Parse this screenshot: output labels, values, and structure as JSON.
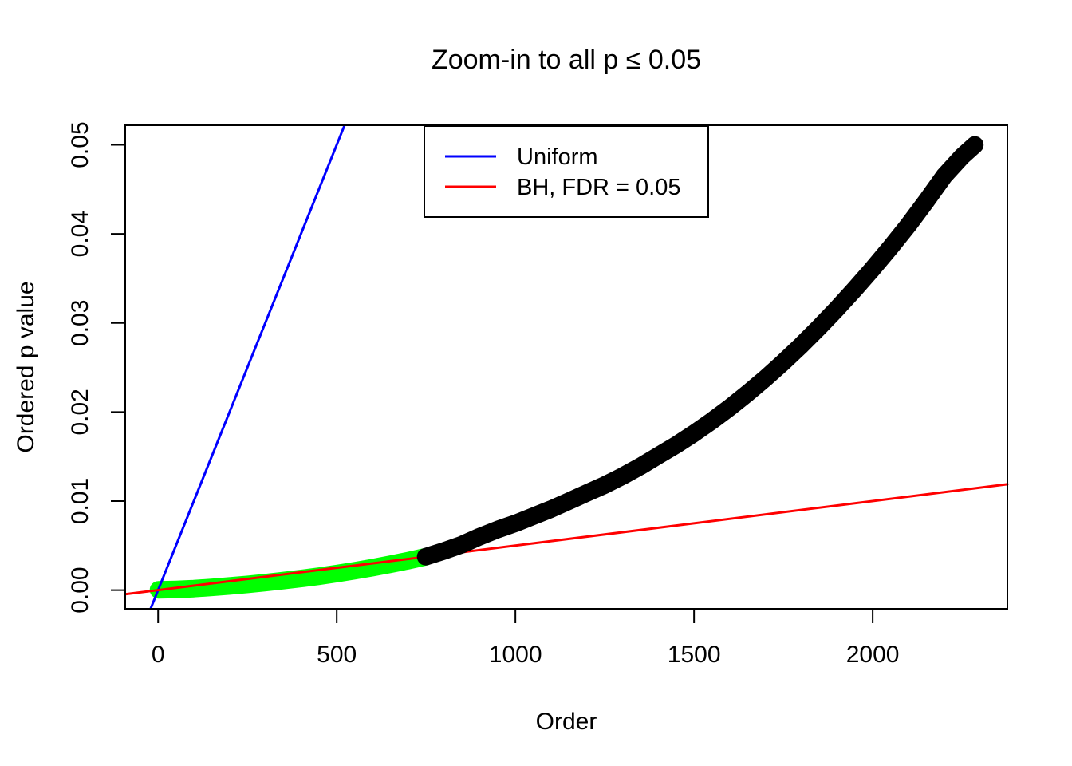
{
  "figure": {
    "background_color": "#ffffff",
    "foreground_color": "#000000"
  },
  "chart_data": {
    "type": "scatter",
    "title": "Zoom-in to all p ≤ 0.05",
    "xlabel": "Order",
    "ylabel": "Ordered p value",
    "xlim": [
      -92,
      2377
    ],
    "ylim": [
      -0.0021,
      0.0522
    ],
    "grid": "off",
    "x_ticks": [
      0,
      500,
      1000,
      1500,
      2000
    ],
    "x_tick_labels": [
      "0",
      "500",
      "1000",
      "1500",
      "2000"
    ],
    "y_ticks": [
      0.0,
      0.01,
      0.02,
      0.03,
      0.04,
      0.05
    ],
    "y_tick_labels": [
      "0.00",
      "0.01",
      "0.02",
      "0.03",
      "0.04",
      "0.05"
    ],
    "legend": {
      "position": "top-center",
      "entries": [
        {
          "label": "Uniform",
          "color": "#0000ff",
          "style": "line"
        },
        {
          "label": "BH, FDR = 0.05",
          "color": "#ff0000",
          "style": "line"
        }
      ]
    },
    "series": [
      {
        "name": "significant-ordered-p-values",
        "role": "points-band",
        "color": "#00ff00",
        "points": [
          [
            1,
            3e-05
          ],
          [
            50,
            8e-05
          ],
          [
            100,
            0.00017
          ],
          [
            150,
            0.0003
          ],
          [
            200,
            0.00046
          ],
          [
            250,
            0.00064
          ],
          [
            300,
            0.00084
          ],
          [
            350,
            0.00106
          ],
          [
            400,
            0.0013
          ],
          [
            450,
            0.00156
          ],
          [
            500,
            0.00185
          ],
          [
            550,
            0.00217
          ],
          [
            600,
            0.00252
          ],
          [
            650,
            0.0029
          ],
          [
            700,
            0.0033
          ],
          [
            748,
            0.00373
          ]
        ]
      },
      {
        "name": "uniform-reference-line",
        "role": "line",
        "color": "#0000ff",
        "points": [
          [
            -21,
            -0.0021
          ],
          [
            522,
            0.0522
          ]
        ]
      },
      {
        "name": "bh-fdr-threshold-line",
        "role": "line",
        "color": "#ff0000",
        "points": [
          [
            -92,
            -0.00046
          ],
          [
            2377,
            0.011885
          ]
        ]
      },
      {
        "name": "nonsignificant-ordered-p-values",
        "role": "points-band",
        "color": "#000000",
        "points": [
          [
            749,
            0.00375
          ],
          [
            800,
            0.0044
          ],
          [
            850,
            0.0051
          ],
          [
            900,
            0.006
          ],
          [
            950,
            0.0068
          ],
          [
            1000,
            0.0075
          ],
          [
            1050,
            0.0083
          ],
          [
            1100,
            0.0091
          ],
          [
            1150,
            0.01
          ],
          [
            1200,
            0.0109
          ],
          [
            1250,
            0.0118
          ],
          [
            1300,
            0.0128
          ],
          [
            1350,
            0.0139
          ],
          [
            1400,
            0.0151
          ],
          [
            1450,
            0.0163
          ],
          [
            1500,
            0.0176
          ],
          [
            1550,
            0.019
          ],
          [
            1600,
            0.0205
          ],
          [
            1650,
            0.0221
          ],
          [
            1700,
            0.0238
          ],
          [
            1750,
            0.0256
          ],
          [
            1800,
            0.0275
          ],
          [
            1850,
            0.0295
          ],
          [
            1900,
            0.0316
          ],
          [
            1950,
            0.0338
          ],
          [
            2000,
            0.0361
          ],
          [
            2050,
            0.0385
          ],
          [
            2100,
            0.041
          ],
          [
            2150,
            0.0437
          ],
          [
            2200,
            0.0465
          ],
          [
            2250,
            0.0487
          ],
          [
            2286,
            0.05
          ]
        ]
      }
    ]
  }
}
